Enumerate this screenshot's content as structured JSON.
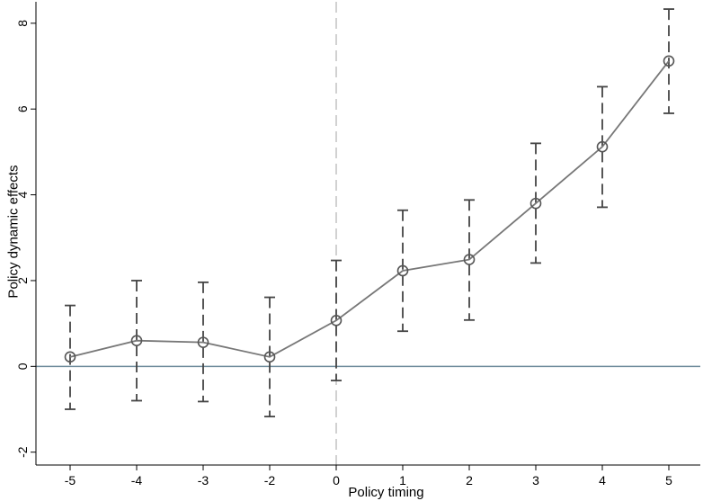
{
  "chart_data": {
    "type": "line",
    "xlabel": "Policy timing",
    "ylabel": "Policy dynamic effects",
    "x_tick_labels": [
      "-5",
      "-4",
      "-3",
      "-2",
      "0",
      "1",
      "2",
      "3",
      "4",
      "5"
    ],
    "y_ticks": [
      -2,
      0,
      2,
      4,
      6,
      8
    ],
    "y_tick_labels": [
      "-2",
      "0",
      "2",
      "4",
      "6",
      "8"
    ],
    "ylim": [
      -2.3,
      8.5
    ],
    "grid": false,
    "reference_lines": {
      "horizontal_at_y": 0,
      "vertical_at_x_label": "0"
    },
    "series": [
      {
        "x": [
          "-5",
          "-4",
          "-3",
          "-2",
          "0",
          "1",
          "2",
          "3",
          "4",
          "5"
        ],
        "values": [
          0.22,
          0.6,
          0.56,
          0.22,
          1.07,
          2.23,
          2.49,
          3.8,
          5.12,
          7.12
        ],
        "ci_lower": [
          -1.0,
          -0.8,
          -0.82,
          -1.17,
          -0.33,
          0.82,
          1.08,
          2.41,
          3.71,
          5.9
        ],
        "ci_upper": [
          1.42,
          2.0,
          1.96,
          1.61,
          2.47,
          3.64,
          3.88,
          5.2,
          6.52,
          8.33
        ]
      }
    ],
    "colors": {
      "line": "#777777",
      "marker": "#555555",
      "error_bar": "#444444",
      "zero_line": "#6e8b9b",
      "vertical_line": "#b8b8b8"
    }
  }
}
